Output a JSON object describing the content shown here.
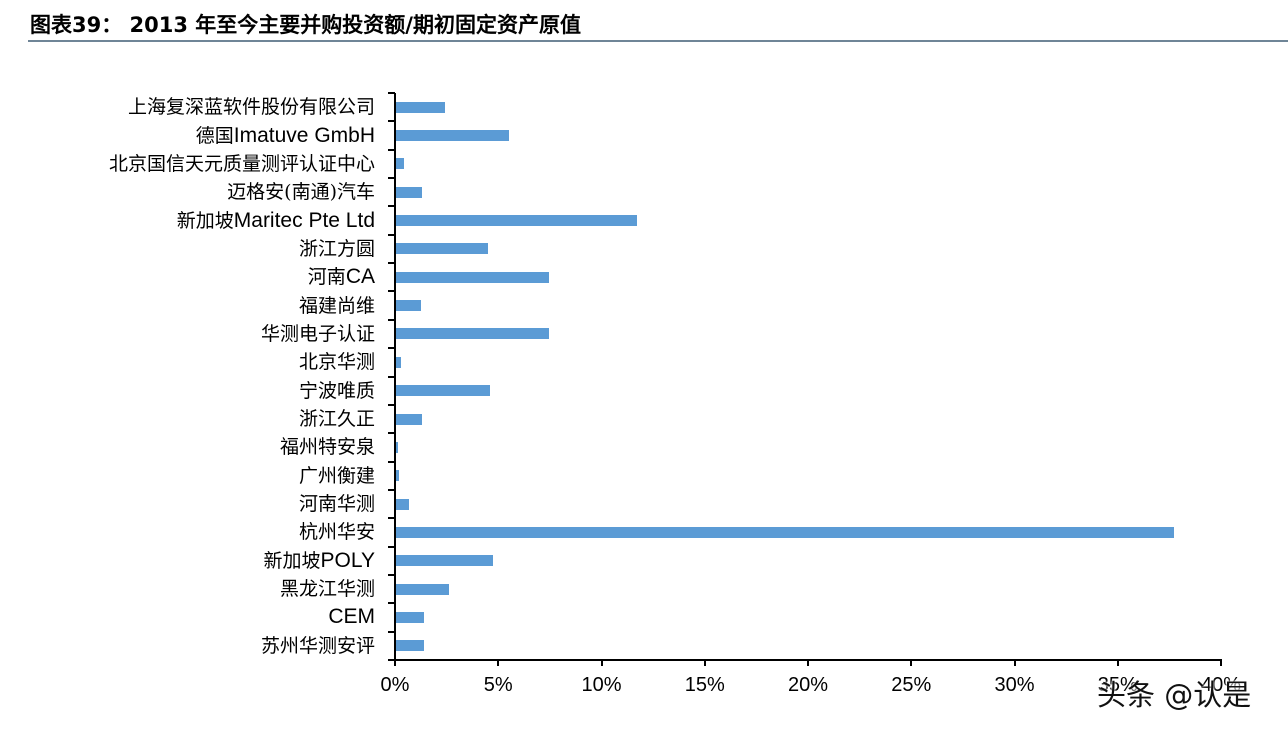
{
  "title": "图表39：  2013 年至今主要并购投资额/期初固定资产原值",
  "watermark": "头条 @认是",
  "chart_data": {
    "type": "bar",
    "orientation": "horizontal",
    "title": "图表39：  2013 年至今主要并购投资额/期初固定资产原值",
    "xlabel": "",
    "ylabel": "",
    "xlim": [
      0,
      40
    ],
    "x_ticks": [
      "0%",
      "5%",
      "10%",
      "15%",
      "20%",
      "25%",
      "30%",
      "35%",
      "40%"
    ],
    "grid": false,
    "legend": null,
    "color": "#5b9bd5",
    "categories": [
      "上海复深蓝软件股份有限公司",
      "德国Imatuve GmbH",
      "北京国信天元质量测评认证中心",
      "迈格安(南通)汽车",
      "新加坡Maritec Pte Ltd",
      "浙江方圆",
      "河南CA",
      "福建尚维",
      "华测电子认证",
      "北京华测",
      "宁波唯质",
      "浙江久正",
      "福州特安泉",
      "广州衡建",
      "河南华测",
      "杭州华安",
      "新加坡POLY",
      "黑龙江华测",
      "CEM",
      "苏州华测安评"
    ],
    "values": [
      2.4,
      5.5,
      0.45,
      1.3,
      11.7,
      4.5,
      7.45,
      1.25,
      7.45,
      0.3,
      4.6,
      1.3,
      0.15,
      0.2,
      0.7,
      37.7,
      4.75,
      2.6,
      1.4,
      1.4
    ],
    "unit": "%"
  }
}
